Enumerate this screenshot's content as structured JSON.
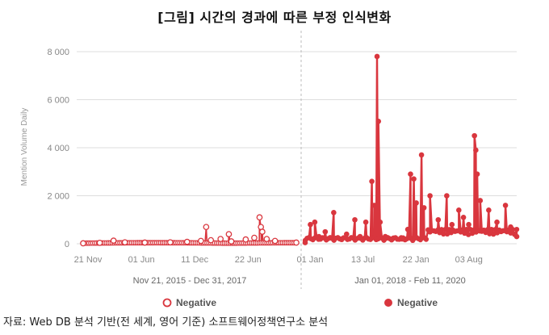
{
  "header": {
    "title": "[그림] 시간의 경과에 따른 부정 인식변화"
  },
  "source": "자료: Web DB 분석 기반(전 세계, 영어 기준) 소프트웨어정책연구소 분석",
  "colors": {
    "series": "#d9363e",
    "axis": "#dddddd",
    "divider": "#bbbbbb"
  },
  "chart_data": [
    {
      "type": "line",
      "marker": "hollow-circle",
      "period_label": "Nov 21, 2015 - Dec 31, 2017",
      "ylabel": "Mention Volume Daily",
      "ylim": [
        0,
        8000
      ],
      "yticks": [
        "0",
        "2 000",
        "4 000",
        "6 000",
        "8 000"
      ],
      "xlim": [
        "2015-11-21",
        "2017-12-31"
      ],
      "xticks": [
        {
          "date": "2015-11-21",
          "label": "21 Nov"
        },
        {
          "date": "2016-06-01",
          "label": "01 Jun"
        },
        {
          "date": "2016-12-11",
          "label": "11 Dec"
        },
        {
          "date": "2017-06-22",
          "label": "22 Jun"
        }
      ],
      "series": [
        {
          "name": "Negative",
          "points": [
            [
              "2015-11-21",
              20
            ],
            [
              "2016-01-20",
              40
            ],
            [
              "2016-03-10",
              130
            ],
            [
              "2016-04-20",
              60
            ],
            [
              "2016-07-01",
              50
            ],
            [
              "2016-10-01",
              60
            ],
            [
              "2016-12-01",
              80
            ],
            [
              "2017-01-20",
              120
            ],
            [
              "2017-02-08",
              700
            ],
            [
              "2017-02-25",
              150
            ],
            [
              "2017-04-01",
              200
            ],
            [
              "2017-05-01",
              400
            ],
            [
              "2017-05-10",
              100
            ],
            [
              "2017-07-01",
              180
            ],
            [
              "2017-08-01",
              250
            ],
            [
              "2017-08-20",
              1100
            ],
            [
              "2017-08-25",
              700
            ],
            [
              "2017-08-30",
              500
            ],
            [
              "2017-09-15",
              200
            ],
            [
              "2017-10-15",
              120
            ],
            [
              "2017-12-31",
              50
            ]
          ]
        }
      ],
      "legend": {
        "label": "Negative",
        "position": "bottom"
      }
    },
    {
      "type": "line",
      "marker": "filled-circle",
      "period_label": "Jan 01, 2018 - Feb 11, 2020",
      "ylim": [
        0,
        8000
      ],
      "xlim": [
        "2018-01-01",
        "2020-02-11"
      ],
      "xticks": [
        {
          "date": "2018-01-01",
          "label": "01 Jan"
        },
        {
          "date": "2018-07-13",
          "label": "13 Jul"
        },
        {
          "date": "2019-01-22",
          "label": "22 Jan"
        },
        {
          "date": "2019-08-03",
          "label": "03 Aug"
        }
      ],
      "series": [
        {
          "name": "Negative",
          "points": [
            [
              "2018-01-01",
              50
            ],
            [
              "2018-01-20",
              800
            ],
            [
              "2018-02-05",
              900
            ],
            [
              "2018-02-20",
              300
            ],
            [
              "2018-03-15",
              500
            ],
            [
              "2018-04-15",
              1300
            ],
            [
              "2018-05-10",
              200
            ],
            [
              "2018-06-01",
              400
            ],
            [
              "2018-07-01",
              1000
            ],
            [
              "2018-07-20",
              300
            ],
            [
              "2018-08-10",
              900
            ],
            [
              "2018-09-01",
              2600
            ],
            [
              "2018-09-10",
              1600
            ],
            [
              "2018-09-20",
              7800
            ],
            [
              "2018-09-25",
              5100
            ],
            [
              "2018-10-01",
              900
            ],
            [
              "2018-10-20",
              300
            ],
            [
              "2018-11-15",
              200
            ],
            [
              "2018-12-20",
              200
            ],
            [
              "2019-01-10",
              600
            ],
            [
              "2019-01-20",
              2900
            ],
            [
              "2019-02-01",
              2700
            ],
            [
              "2019-02-10",
              1700
            ],
            [
              "2019-03-01",
              3700
            ],
            [
              "2019-03-10",
              1500
            ],
            [
              "2019-04-01",
              2000
            ],
            [
              "2019-05-01",
              1000
            ],
            [
              "2019-06-01",
              2000
            ],
            [
              "2019-06-20",
              800
            ],
            [
              "2019-07-15",
              1400
            ],
            [
              "2019-08-01",
              1100
            ],
            [
              "2019-08-20",
              800
            ],
            [
              "2019-09-10",
              4500
            ],
            [
              "2019-09-15",
              3900
            ],
            [
              "2019-09-20",
              2900
            ],
            [
              "2019-10-01",
              1800
            ],
            [
              "2019-11-01",
              1400
            ],
            [
              "2019-12-01",
              900
            ],
            [
              "2020-01-01",
              1600
            ],
            [
              "2020-01-20",
              700
            ],
            [
              "2020-02-11",
              300
            ]
          ]
        }
      ],
      "legend": {
        "label": "Negative",
        "position": "bottom"
      }
    }
  ]
}
